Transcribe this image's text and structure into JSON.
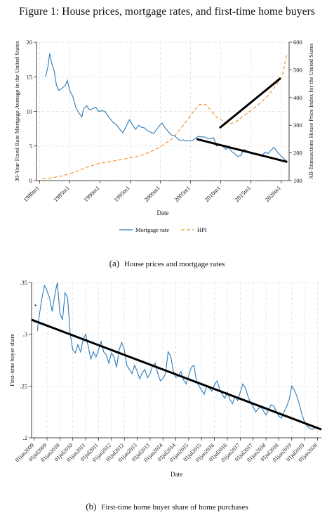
{
  "figure_title": "Figure 1: House prices, mortgage rates, and first-time home buyers",
  "captions": {
    "a_tag": "(a)",
    "a_text": "House prices and mortgage rates",
    "b_tag": "(b)",
    "b_text": "First-time home buyer share of home purchases"
  },
  "colors": {
    "mortgage": "#2b7bb9",
    "hpi": "#f0962e",
    "trend": "#000000",
    "grid": "#dcdcdc"
  },
  "chart_data": [
    {
      "type": "line",
      "xlabel": "Date",
      "ylabel": "30-Year Fixed Rate Mortgage Average in the United States",
      "ylabel_right": "All-Transactions House Price Index for the United States",
      "x_ticks": [
        1980,
        1985,
        1990,
        1995,
        2000,
        2005,
        2010,
        2015,
        2020
      ],
      "x_tick_labels": [
        "1980m1",
        "1985m1",
        "1990m1",
        "1995m1",
        "2000m1",
        "2005m1",
        "2010m1",
        "2015m1",
        "2020m1"
      ],
      "xlim": [
        1979.5,
        2021.3
      ],
      "ylim_left": [
        0,
        20
      ],
      "y_ticks_left": [
        0,
        5,
        10,
        15,
        20
      ],
      "ylim_right": [
        100,
        600
      ],
      "y_ticks_right": [
        100,
        200,
        300,
        400,
        500,
        600
      ],
      "legend": {
        "position": "bottom",
        "entries": [
          "Mortgage rate",
          "HPI"
        ]
      },
      "series": [
        {
          "name": "Mortgage rate",
          "axis": "left",
          "style": "solid",
          "x": [
            1981.0,
            1981.4,
            1981.7,
            1982.0,
            1982.4,
            1982.8,
            1983.2,
            1983.8,
            1984.3,
            1984.6,
            1985.0,
            1985.5,
            1986.0,
            1986.5,
            1987.0,
            1987.3,
            1987.8,
            1988.3,
            1988.8,
            1989.3,
            1989.8,
            1990.3,
            1990.8,
            1991.3,
            1991.8,
            1992.2,
            1992.7,
            1993.2,
            1993.8,
            1994.3,
            1994.9,
            1995.4,
            1995.9,
            1996.4,
            1996.9,
            1997.4,
            1997.9,
            1998.4,
            1998.9,
            1999.4,
            1999.9,
            2000.3,
            2000.8,
            2001.3,
            2001.8,
            2002.3,
            2002.8,
            2003.3,
            2003.8,
            2004.3,
            2004.8,
            2005.3,
            2005.8,
            2006.3,
            2006.8,
            2007.3,
            2007.8,
            2008.3,
            2008.8,
            2009.3,
            2009.8,
            2010.3,
            2010.8,
            2011.3,
            2011.8,
            2012.3,
            2012.8,
            2013.3,
            2013.8,
            2014.3,
            2014.8,
            2015.3,
            2015.8,
            2016.3,
            2016.8,
            2017.3,
            2017.8,
            2018.3,
            2018.8,
            2019.3,
            2019.8,
            2020.3,
            2020.9
          ],
          "values": [
            15.0,
            16.5,
            18.4,
            17.0,
            16.0,
            13.8,
            13.0,
            13.4,
            13.8,
            14.5,
            13.0,
            12.2,
            10.6,
            9.8,
            9.2,
            10.4,
            10.8,
            10.2,
            10.4,
            10.6,
            10.0,
            10.1,
            10.0,
            9.4,
            8.8,
            8.4,
            8.1,
            7.5,
            6.9,
            7.8,
            8.8,
            8.0,
            7.4,
            8.0,
            7.7,
            7.6,
            7.2,
            7.0,
            6.8,
            7.4,
            8.0,
            8.3,
            7.6,
            7.1,
            6.6,
            6.5,
            6.1,
            5.8,
            5.9,
            5.7,
            5.8,
            5.8,
            6.1,
            6.4,
            6.3,
            6.3,
            6.1,
            6.0,
            6.2,
            5.0,
            5.1,
            5.0,
            4.5,
            4.8,
            4.2,
            3.9,
            3.5,
            3.6,
            4.5,
            4.3,
            4.0,
            3.8,
            3.9,
            3.7,
            3.5,
            4.1,
            3.9,
            4.4,
            4.8,
            4.2,
            3.7,
            3.3,
            2.8
          ]
        },
        {
          "name": "HPI",
          "axis": "right",
          "style": "dashed",
          "x": [
            1980.5,
            1982,
            1984,
            1986,
            1988,
            1990,
            1992,
            1994,
            1996,
            1998,
            2000,
            2002,
            2004,
            2005.5,
            2006.5,
            2007.5,
            2008.5,
            2009.5,
            2010.5,
            2011.5,
            2012.5,
            2013.5,
            2014.5,
            2015.5,
            2016.5,
            2017.5,
            2018.5,
            2019.5,
            2020.2,
            2020.9
          ],
          "values": [
            106,
            110,
            118,
            132,
            150,
            163,
            170,
            178,
            186,
            200,
            222,
            252,
            305,
            350,
            375,
            375,
            350,
            325,
            315,
            305,
            312,
            330,
            345,
            362,
            380,
            400,
            425,
            455,
            480,
            555
          ]
        }
      ],
      "trend_lines": [
        {
          "axis": "right",
          "x": [
            2009.8,
            2019.9
          ],
          "y": [
            290,
            470
          ]
        },
        {
          "axis": "left",
          "x": [
            2006.0,
            2021.0
          ],
          "y": [
            6.0,
            2.7
          ]
        }
      ]
    },
    {
      "type": "line",
      "xlabel": "Date",
      "ylabel": "First-time buyer share",
      "x_ticks": [
        2009.0,
        2009.5,
        2010.0,
        2010.5,
        2011.0,
        2011.5,
        2012.0,
        2012.5,
        2013.0,
        2013.5,
        2014.0,
        2014.5,
        2015.0,
        2015.5,
        2016.0,
        2016.5,
        2017.0,
        2017.5,
        2018.0,
        2018.5,
        2019.0,
        2019.5,
        2020.0
      ],
      "x_tick_labels": [
        "01jan2009",
        "01jul2009",
        "01jan2010",
        "01jul2010",
        "01jan2011",
        "01jul2011",
        "01jan2012",
        "01jul2012",
        "01jan2013",
        "01jul2013",
        "01jan2014",
        "01jul2014",
        "01jan2015",
        "01jul2015",
        "01jan2016",
        "01jul2016",
        "01jan2017",
        "01jul2017",
        "01jan2018",
        "01jul2018",
        "01jan2019",
        "01jul2019",
        "01jan2020"
      ],
      "xlim": [
        2008.9,
        2020.15
      ],
      "ylim": [
        0.2,
        0.35
      ],
      "y_ticks": [
        0.2,
        0.25,
        0.3,
        0.35
      ],
      "y_tick_labels": [
        ".2",
        ".25",
        ".3",
        ".35"
      ],
      "series": [
        {
          "name": "",
          "style": "solid",
          "x": [
            2009.12,
            2009.2,
            2009.3,
            2009.4,
            2009.5,
            2009.6,
            2009.7,
            2009.8,
            2009.9,
            2010.0,
            2010.1,
            2010.2,
            2010.3,
            2010.4,
            2010.5,
            2010.6,
            2010.7,
            2010.8,
            2010.9,
            2011.0,
            2011.1,
            2011.2,
            2011.3,
            2011.4,
            2011.5,
            2011.6,
            2011.7,
            2011.8,
            2011.9,
            2012.0,
            2012.1,
            2012.2,
            2012.3,
            2012.4,
            2012.5,
            2012.6,
            2012.7,
            2012.8,
            2012.9,
            2013.0,
            2013.1,
            2013.2,
            2013.3,
            2013.4,
            2013.5,
            2013.6,
            2013.7,
            2013.8,
            2013.9,
            2014.0,
            2014.1,
            2014.2,
            2014.3,
            2014.4,
            2014.5,
            2014.6,
            2014.7,
            2014.8,
            2014.9,
            2015.0,
            2015.1,
            2015.2,
            2015.3,
            2015.4,
            2015.5,
            2015.6,
            2015.7,
            2015.8,
            2015.9,
            2016.0,
            2016.1,
            2016.2,
            2016.3,
            2016.4,
            2016.5,
            2016.6,
            2016.7,
            2016.8,
            2016.9,
            2017.0,
            2017.1,
            2017.2,
            2017.3,
            2017.4,
            2017.5,
            2017.6,
            2017.7,
            2017.8,
            2017.9,
            2018.0,
            2018.1,
            2018.2,
            2018.3,
            2018.4,
            2018.5,
            2018.6,
            2018.7,
            2018.8,
            2018.9,
            2019.0,
            2019.1,
            2019.2,
            2019.3,
            2019.4,
            2019.5,
            2019.6,
            2019.7,
            2019.8,
            2019.9,
            2020.0
          ],
          "values": [
            0.303,
            0.318,
            0.335,
            0.347,
            0.342,
            0.335,
            0.322,
            0.338,
            0.35,
            0.32,
            0.314,
            0.34,
            0.335,
            0.3,
            0.285,
            0.282,
            0.29,
            0.283,
            0.295,
            0.3,
            0.288,
            0.276,
            0.283,
            0.278,
            0.285,
            0.293,
            0.283,
            0.28,
            0.272,
            0.282,
            0.278,
            0.268,
            0.285,
            0.292,
            0.285,
            0.27,
            0.266,
            0.262,
            0.27,
            0.264,
            0.257,
            0.263,
            0.266,
            0.258,
            0.262,
            0.27,
            0.272,
            0.262,
            0.255,
            0.257,
            0.262,
            0.283,
            0.279,
            0.265,
            0.258,
            0.26,
            0.264,
            0.256,
            0.252,
            0.26,
            0.268,
            0.27,
            0.255,
            0.25,
            0.246,
            0.242,
            0.25,
            0.248,
            0.245,
            0.251,
            0.255,
            0.247,
            0.242,
            0.238,
            0.244,
            0.237,
            0.233,
            0.24,
            0.236,
            0.244,
            0.252,
            0.248,
            0.24,
            0.234,
            0.23,
            0.225,
            0.228,
            0.23,
            0.226,
            0.222,
            0.227,
            0.232,
            0.231,
            0.225,
            0.221,
            0.219,
            0.225,
            0.23,
            0.237,
            0.25,
            0.246,
            0.24,
            0.232,
            0.222,
            0.215,
            0.211,
            0.209,
            0.208,
            0.21,
            0.209
          ]
        }
      ],
      "points": [
        {
          "x": 2009.05,
          "y": 0.328
        }
      ],
      "trend_lines": [
        {
          "x": [
            2008.9,
            2020.15
          ],
          "y": [
            0.314,
            0.208
          ]
        }
      ]
    }
  ]
}
